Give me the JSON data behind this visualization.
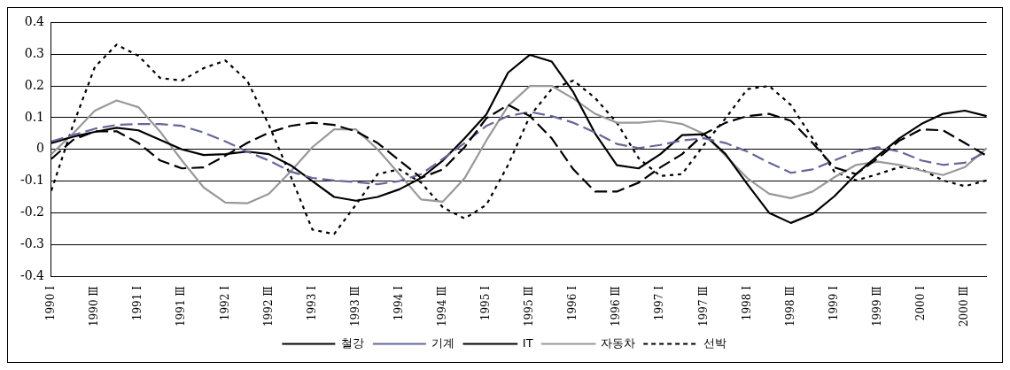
{
  "chart_data": {
    "type": "line",
    "categories": [
      "1990 Ⅰ",
      null,
      "1990 Ⅲ",
      null,
      "1991 Ⅰ",
      null,
      "1991 Ⅲ",
      null,
      "1992 Ⅰ",
      null,
      "1992 Ⅲ",
      null,
      "1993 Ⅰ",
      null,
      "1993 Ⅲ",
      null,
      "1994 Ⅰ",
      null,
      "1994 Ⅲ",
      null,
      "1995 Ⅰ",
      null,
      "1995 Ⅲ",
      null,
      "1996 Ⅰ",
      null,
      "1996 Ⅲ",
      null,
      "1997 Ⅰ",
      null,
      "1997 Ⅲ",
      null,
      "1998 Ⅰ",
      null,
      "1998 Ⅲ",
      null,
      "1999 Ⅰ",
      null,
      "1999 Ⅲ",
      null,
      "2000 Ⅰ",
      null,
      "2000 Ⅲ",
      null
    ],
    "series": [
      {
        "name": "철강",
        "color": "#000000",
        "line_style": "dashed",
        "values": [
          -0.03,
          0.03,
          0.057,
          0.057,
          0.02,
          -0.035,
          -0.06,
          -0.057,
          -0.02,
          0.02,
          0.053,
          0.074,
          0.084,
          0.077,
          0.057,
          0.02,
          -0.035,
          -0.09,
          -0.063,
          0.007,
          0.098,
          0.14,
          0.105,
          0.035,
          -0.063,
          -0.133,
          -0.133,
          -0.105,
          -0.057,
          -0.015,
          0.048,
          0.084,
          0.105,
          0.112,
          0.09,
          0.02,
          -0.057,
          -0.078,
          -0.028,
          0.028,
          0.063,
          0.06,
          0.02,
          -0.02
        ]
      },
      {
        "name": "기계",
        "color": "#666699",
        "line_style": "dashed",
        "values": [
          0.025,
          0.045,
          0.065,
          0.077,
          0.08,
          0.08,
          0.074,
          0.053,
          0.025,
          -0.007,
          -0.035,
          -0.07,
          -0.09,
          -0.098,
          -0.103,
          -0.11,
          -0.1,
          -0.078,
          -0.03,
          0.02,
          0.074,
          0.105,
          0.118,
          0.105,
          0.084,
          0.053,
          0.017,
          0.004,
          0.014,
          0.028,
          0.035,
          0.02,
          -0.007,
          -0.042,
          -0.074,
          -0.063,
          -0.035,
          -0.007,
          0.007,
          -0.007,
          -0.035,
          -0.049,
          -0.042,
          -0.007
        ]
      },
      {
        "name": "IT",
        "color": "#000000",
        "line_style": "solid",
        "values": [
          0.02,
          0.04,
          0.055,
          0.068,
          0.06,
          0.03,
          0.0,
          -0.018,
          -0.015,
          -0.007,
          -0.015,
          -0.05,
          -0.1,
          -0.15,
          -0.162,
          -0.15,
          -0.126,
          -0.09,
          -0.035,
          0.035,
          0.11,
          0.242,
          0.298,
          0.277,
          0.18,
          0.05,
          -0.05,
          -0.06,
          -0.015,
          0.045,
          0.048,
          -0.015,
          -0.11,
          -0.2,
          -0.232,
          -0.204,
          -0.148,
          -0.078,
          -0.02,
          0.035,
          0.08,
          0.112,
          0.122,
          0.105
        ]
      },
      {
        "name": "자동차",
        "color": "#999999",
        "line_style": "solid",
        "values": [
          -0.015,
          0.05,
          0.122,
          0.154,
          0.133,
          0.056,
          -0.035,
          -0.12,
          -0.168,
          -0.17,
          -0.14,
          -0.07,
          0.007,
          0.063,
          0.063,
          0.0,
          -0.078,
          -0.158,
          -0.165,
          -0.091,
          0.028,
          0.137,
          0.2,
          0.2,
          0.16,
          0.112,
          0.084,
          0.084,
          0.09,
          0.08,
          0.049,
          -0.02,
          -0.091,
          -0.14,
          -0.154,
          -0.133,
          -0.088,
          -0.049,
          -0.039,
          -0.049,
          -0.067,
          -0.081,
          -0.056,
          0.004
        ]
      },
      {
        "name": "선박",
        "color": "#000000",
        "line_style": "dotted",
        "values": [
          -0.13,
          0.077,
          0.26,
          0.33,
          0.295,
          0.225,
          0.217,
          0.256,
          0.28,
          0.217,
          0.077,
          -0.084,
          -0.253,
          -0.267,
          -0.175,
          -0.078,
          -0.063,
          -0.105,
          -0.183,
          -0.218,
          -0.175,
          -0.049,
          0.105,
          0.19,
          0.217,
          0.162,
          0.084,
          -0.028,
          -0.084,
          -0.078,
          0.014,
          0.098,
          0.19,
          0.2,
          0.14,
          0.035,
          -0.07,
          -0.098,
          -0.078,
          -0.056,
          -0.063,
          -0.098,
          -0.116,
          -0.098
        ]
      }
    ],
    "ylim": [
      -0.4,
      0.4
    ],
    "yticks": [
      -0.4,
      -0.3,
      -0.2,
      -0.1,
      0,
      0.1,
      0.2,
      0.3,
      0.4
    ],
    "grid": "y",
    "legend": "bottom",
    "marker": "none"
  }
}
